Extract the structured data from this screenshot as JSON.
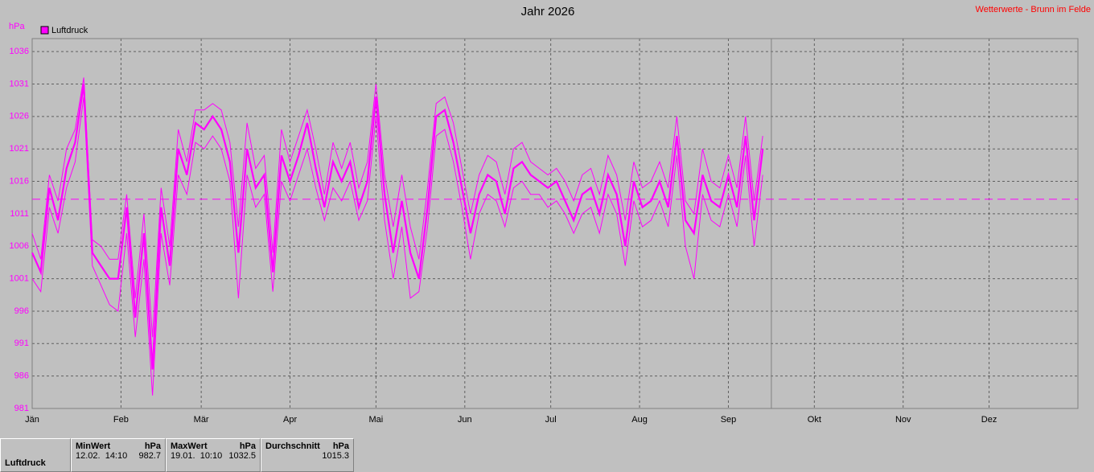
{
  "chart_data": {
    "type": "line",
    "title": "Jahr 2026",
    "source": "Wetterwerte - Brunn im Felde",
    "y_unit": "hPa",
    "xlim": [
      0,
      365
    ],
    "ylim": [
      981,
      1038
    ],
    "xticks": [
      {
        "value": 0,
        "label": "Jän"
      },
      {
        "value": 31,
        "label": "Feb"
      },
      {
        "value": 59,
        "label": "Mär"
      },
      {
        "value": 90,
        "label": "Apr"
      },
      {
        "value": 120,
        "label": "Mai"
      },
      {
        "value": 151,
        "label": "Jun"
      },
      {
        "value": 181,
        "label": "Jul"
      },
      {
        "value": 212,
        "label": "Aug"
      },
      {
        "value": 243,
        "label": "Sep"
      },
      {
        "value": 273,
        "label": "Okt"
      },
      {
        "value": 304,
        "label": "Nov"
      },
      {
        "value": 334,
        "label": "Dez"
      }
    ],
    "yticks": [
      981,
      986,
      991,
      996,
      1001,
      1006,
      1011,
      1016,
      1021,
      1026,
      1031,
      1036
    ],
    "grid": true,
    "reference_line": 1013.25,
    "current_day": 258,
    "x": [
      0,
      3,
      6,
      9,
      12,
      15,
      18,
      21,
      24,
      27,
      30,
      33,
      36,
      39,
      42,
      45,
      48,
      51,
      54,
      57,
      60,
      63,
      66,
      69,
      72,
      75,
      78,
      81,
      84,
      87,
      90,
      93,
      96,
      99,
      102,
      105,
      108,
      111,
      114,
      117,
      120,
      123,
      126,
      129,
      132,
      135,
      138,
      141,
      144,
      147,
      150,
      153,
      156,
      159,
      162,
      165,
      168,
      171,
      174,
      177,
      180,
      183,
      186,
      189,
      192,
      195,
      198,
      201,
      204,
      207,
      210,
      213,
      216,
      219,
      222,
      225,
      228,
      231,
      234,
      237,
      240,
      243,
      246,
      249,
      252,
      255
    ],
    "series": [
      {
        "name": "Luftdruck",
        "color": "#ff00ff",
        "values": [
          1005,
          1002,
          1015,
          1010,
          1018,
          1022,
          1031,
          1005,
          1003,
          1001,
          1001,
          1012,
          995,
          1008,
          987,
          1012,
          1003,
          1021,
          1017,
          1025,
          1024,
          1026,
          1024,
          1019,
          1005,
          1021,
          1015,
          1017,
          1002,
          1020,
          1016,
          1020,
          1025,
          1018,
          1012,
          1019,
          1016,
          1019,
          1012,
          1016,
          1029,
          1014,
          1005,
          1013,
          1005,
          1001,
          1012,
          1026,
          1027,
          1022,
          1015,
          1008,
          1014,
          1017,
          1016,
          1011,
          1018,
          1019,
          1017,
          1016,
          1015,
          1016,
          1013,
          1010,
          1014,
          1015,
          1011,
          1017,
          1014,
          1006,
          1016,
          1012,
          1013,
          1016,
          1012,
          1023,
          1010,
          1008,
          1017,
          1013,
          1012,
          1017,
          1012,
          1023,
          1010,
          1021
        ]
      },
      {
        "color": "#ff00ff",
        "values": [
          1008,
          1004,
          1017,
          1013,
          1021,
          1024,
          1032,
          1007,
          1006,
          1004,
          1004,
          1014,
          998,
          1011,
          992,
          1015,
          1006,
          1024,
          1019,
          1027,
          1027,
          1028,
          1027,
          1022,
          1009,
          1025,
          1018,
          1020,
          1005,
          1024,
          1019,
          1023,
          1027,
          1021,
          1014,
          1022,
          1018,
          1022,
          1015,
          1019,
          1031,
          1017,
          1009,
          1017,
          1009,
          1004,
          1015,
          1028,
          1029,
          1025,
          1018,
          1011,
          1017,
          1020,
          1019,
          1014,
          1021,
          1022,
          1019,
          1018,
          1017,
          1018,
          1016,
          1013,
          1017,
          1018,
          1014,
          1020,
          1017,
          1010,
          1019,
          1015,
          1016,
          1019,
          1015,
          1026,
          1013,
          1011,
          1021,
          1016,
          1015,
          1020,
          1015,
          1026,
          1013,
          1023
        ]
      },
      {
        "color": "#ff00ff",
        "values": [
          1001,
          999,
          1012,
          1008,
          1015,
          1019,
          1029,
          1003,
          1000,
          997,
          996,
          1008,
          992,
          1004,
          983,
          1008,
          1000,
          1017,
          1014,
          1022,
          1021,
          1023,
          1021,
          1016,
          998,
          1017,
          1012,
          1014,
          999,
          1016,
          1013,
          1017,
          1021,
          1015,
          1010,
          1015,
          1013,
          1016,
          1010,
          1013,
          1026,
          1010,
          1001,
          1009,
          998,
          999,
          1009,
          1023,
          1024,
          1019,
          1012,
          1004,
          1011,
          1014,
          1013,
          1009,
          1015,
          1016,
          1014,
          1014,
          1012,
          1013,
          1011,
          1008,
          1011,
          1012,
          1008,
          1014,
          1011,
          1003,
          1013,
          1009,
          1010,
          1013,
          1009,
          1020,
          1006,
          1001,
          1014,
          1010,
          1009,
          1014,
          1009,
          1020,
          1006,
          1017
        ]
      }
    ],
    "stats": {
      "series_label": "Luftdruck",
      "min_header": "MinWert",
      "max_header": "MaxWert",
      "avg_header": "Durchschnitt",
      "unit": "hPa",
      "min_time": "12.02.  14:10",
      "min_value": "982.7",
      "max_time": "19.01.  10:10",
      "max_value": "1032.5",
      "avg_value": "1015.3"
    }
  }
}
